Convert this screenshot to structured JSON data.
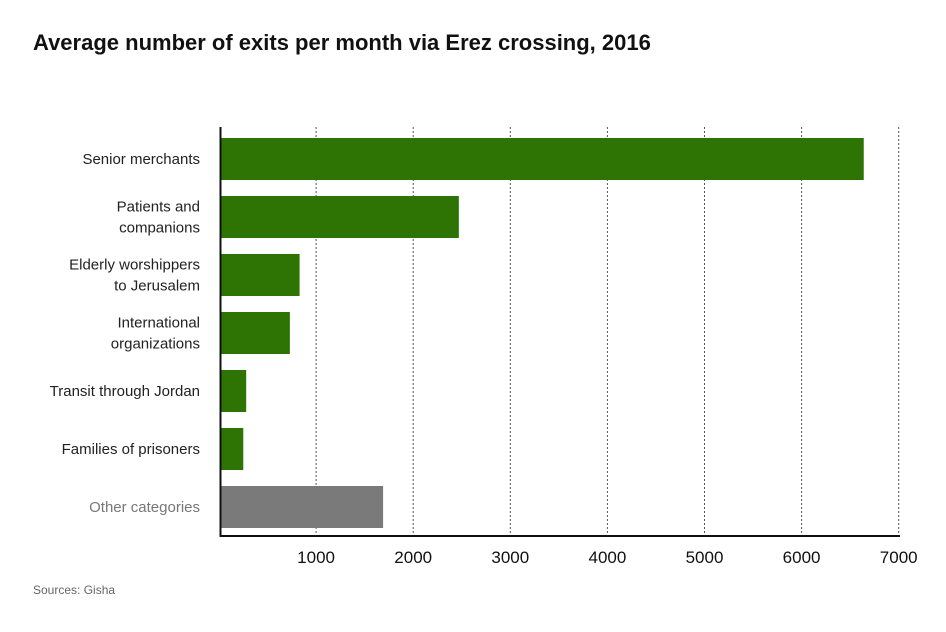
{
  "chart_data": {
    "type": "bar",
    "orientation": "horizontal",
    "title": "Average number of exits per month via Erez crossing, 2016",
    "source": "Sources: Gisha",
    "categories": [
      [
        "Senior merchants"
      ],
      [
        "Patients and",
        "companions"
      ],
      [
        "Elderly worshippers",
        "to Jerusalem"
      ],
      [
        "International",
        "organizations"
      ],
      [
        "Transit through Jordan"
      ],
      [
        "Families of prisoners"
      ],
      [
        "Other categories"
      ]
    ],
    "values": [
      6640,
      2470,
      830,
      730,
      280,
      250,
      1690
    ],
    "colors": [
      "#2d7404",
      "#2d7404",
      "#2d7404",
      "#2d7404",
      "#2d7404",
      "#2d7404",
      "#7a7a7a"
    ],
    "label_colors": [
      "#222222",
      "#222222",
      "#222222",
      "#222222",
      "#222222",
      "#222222",
      "#777777"
    ],
    "xlim": [
      0,
      7000
    ],
    "xticks": [
      "1000",
      "2000",
      "3000",
      "4000",
      "5000",
      "6000",
      "7000"
    ],
    "tick_values": [
      1000,
      2000,
      3000,
      4000,
      5000,
      6000,
      7000
    ],
    "grid": "vertical dotted"
  }
}
